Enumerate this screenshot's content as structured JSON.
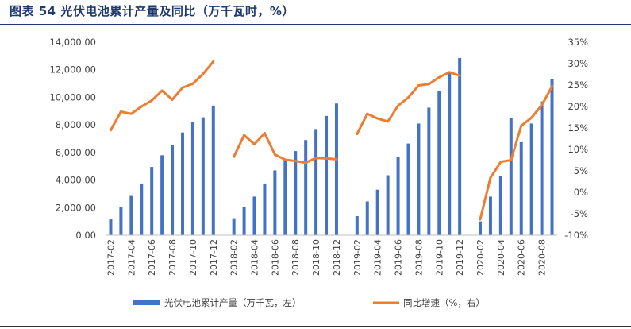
{
  "header": {
    "title": "图表 54  光伏电池累计产量及同比（万千瓦时，%）"
  },
  "chart_data": {
    "type": "bar",
    "x": [
      "2017-02",
      "2017-03",
      "2017-04",
      "2017-05",
      "2017-06",
      "2017-07",
      "2017-08",
      "2017-09",
      "2017-10",
      "2017-11",
      "2017-12",
      "2018-01",
      "2018-02",
      "2018-03",
      "2018-04",
      "2018-05",
      "2018-06",
      "2018-07",
      "2018-08",
      "2018-09",
      "2018-10",
      "2018-11",
      "2018-12",
      "2019-01",
      "2019-02",
      "2019-03",
      "2019-04",
      "2019-05",
      "2019-06",
      "2019-07",
      "2019-08",
      "2019-09",
      "2019-10",
      "2019-11",
      "2019-12",
      "2020-01",
      "2020-02",
      "2020-03",
      "2020-04",
      "2020-05",
      "2020-06",
      "2020-07",
      "2020-08",
      "2020-09"
    ],
    "x_tick_labels": [
      "2017-02",
      "2017-04",
      "2017-06",
      "2017-08",
      "2017-10",
      "2017-12",
      "2018-02",
      "2018-04",
      "2018-06",
      "2018-08",
      "2018-10",
      "2018-12",
      "2019-02",
      "2019-04",
      "2019-06",
      "2019-08",
      "2019-10",
      "2019-12",
      "2020-02",
      "2020-04",
      "2020-06",
      "2020-08"
    ],
    "series": [
      {
        "name": "光伏电池累计产量（万千瓦，左）",
        "kind": "bar",
        "axis": "left",
        "color": "#4472C4",
        "values": [
          1150,
          2050,
          2850,
          3750,
          4950,
          5800,
          6550,
          7450,
          8200,
          8550,
          9400,
          null,
          1230,
          2050,
          2800,
          3750,
          4700,
          5500,
          6100,
          6900,
          7700,
          8650,
          9550,
          null,
          1380,
          2450,
          3300,
          4350,
          5700,
          6650,
          8100,
          9250,
          10450,
          11800,
          12850,
          null,
          1000,
          2800,
          4300,
          8500,
          6750,
          8100,
          9700,
          11350
        ]
      },
      {
        "name": "同比增速（%，右）",
        "kind": "line",
        "axis": "right",
        "color": "#ED7D31",
        "values": [
          14.5,
          18.8,
          18.3,
          20.0,
          21.4,
          23.7,
          21.6,
          24.4,
          25.3,
          27.6,
          30.5,
          null,
          8.3,
          13.3,
          11.2,
          13.8,
          8.8,
          7.6,
          7.3,
          6.9,
          8.0,
          7.9,
          7.7,
          null,
          13.6,
          18.3,
          17.2,
          16.5,
          20.2,
          22.1,
          24.9,
          25.2,
          26.8,
          28.0,
          27.2,
          null,
          -6.3,
          3.4,
          7.1,
          7.5,
          15.5,
          17.4,
          20.3,
          24.7
        ]
      }
    ],
    "y_left": {
      "min": 0,
      "max": 14000,
      "step": 2000,
      "tick_labels": [
        "0.00",
        "2,000.00",
        "4,000.00",
        "6,000.00",
        "8,000.00",
        "10,000.00",
        "12,000.00",
        "14,000.00"
      ]
    },
    "y_right": {
      "min": -10,
      "max": 35,
      "step": 5,
      "tick_labels": [
        "-10%",
        "-5%",
        "0%",
        "5%",
        "10%",
        "15%",
        "20%",
        "25%",
        "30%",
        "35%"
      ]
    },
    "grid": false,
    "legend": {
      "position": "bottom"
    }
  }
}
